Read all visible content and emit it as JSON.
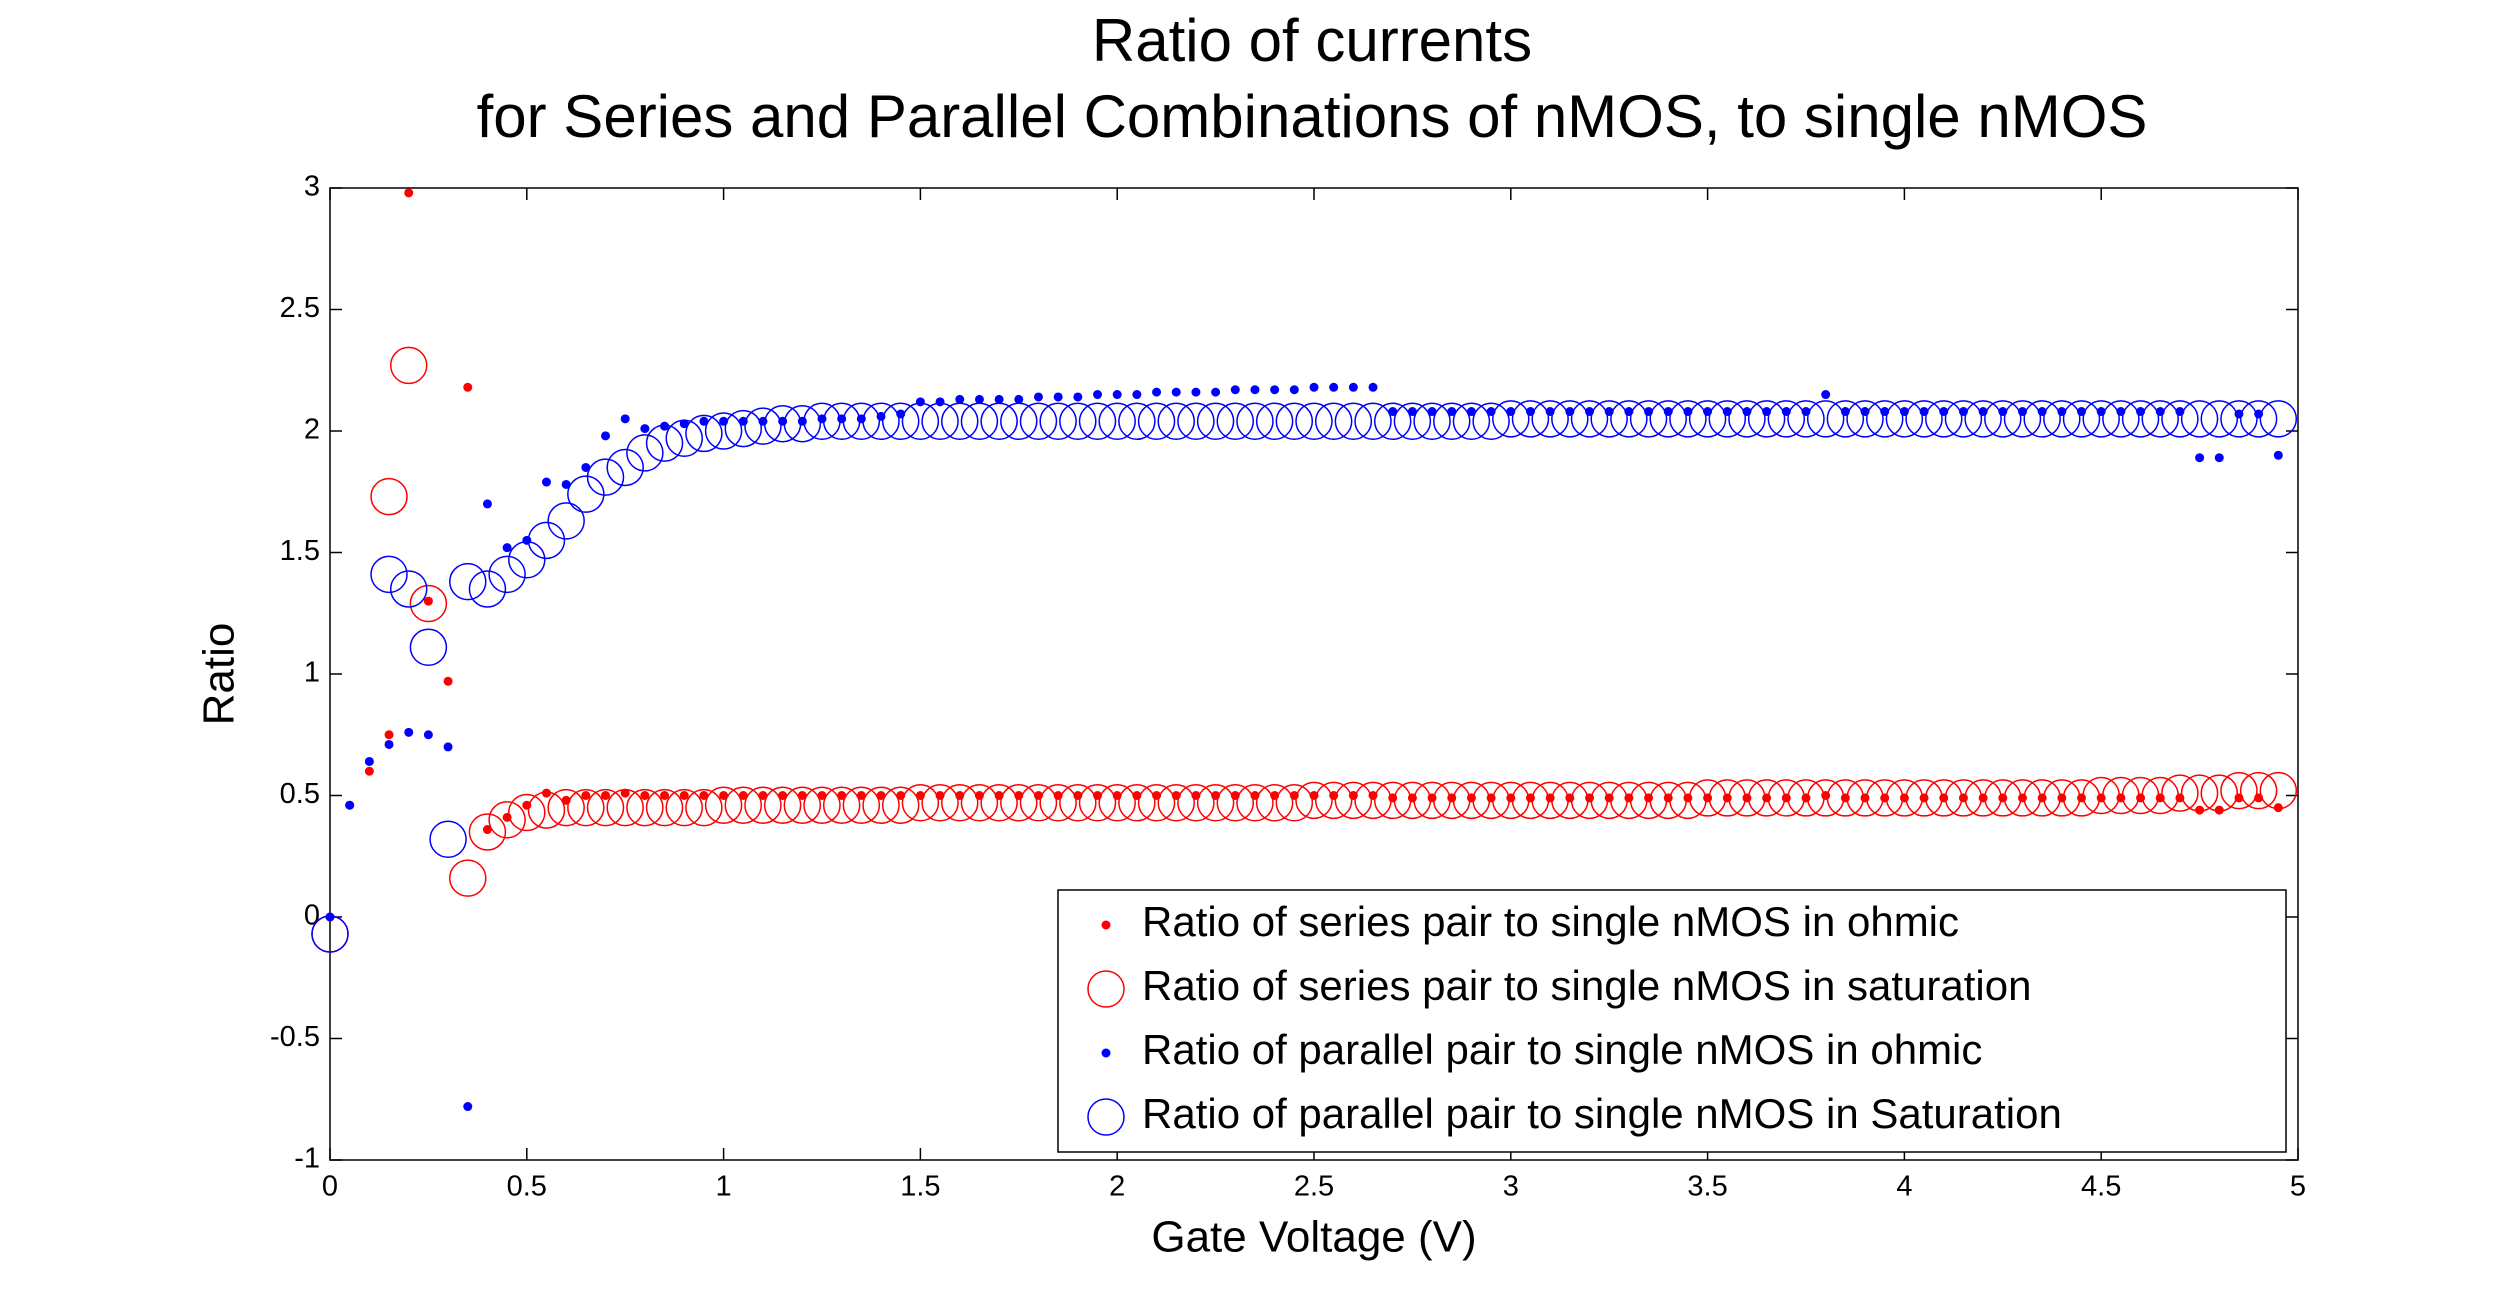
{
  "chart_data": {
    "type": "scatter",
    "title": [
      "Ratio of currents",
      "for Series and Parallel Combinations of nMOS, to single nMOS"
    ],
    "x_label": "Gate Voltage (V)",
    "y_label": "Ratio",
    "x": [
      0,
      0.05,
      0.1,
      0.15,
      0.2,
      0.25,
      0.3,
      0.35,
      0.4,
      0.45,
      0.5,
      0.55,
      0.6,
      0.65,
      0.7,
      0.75,
      0.8,
      0.85,
      0.9,
      0.95,
      1,
      1.05,
      1.1,
      1.15,
      1.2,
      1.25,
      1.3,
      1.35,
      1.4,
      1.45,
      1.5,
      1.55,
      1.6,
      1.65,
      1.7,
      1.75,
      1.8,
      1.85,
      1.9,
      1.95,
      2,
      2.05,
      2.1,
      2.15,
      2.2,
      2.25,
      2.3,
      2.35,
      2.4,
      2.45,
      2.5,
      2.55,
      2.6,
      2.65,
      2.7,
      2.75,
      2.8,
      2.85,
      2.9,
      2.95,
      3,
      3.05,
      3.1,
      3.15,
      3.2,
      3.25,
      3.3,
      3.35,
      3.4,
      3.45,
      3.5,
      3.55,
      3.6,
      3.65,
      3.7,
      3.75,
      3.8,
      3.85,
      3.9,
      3.95,
      4,
      4.05,
      4.1,
      4.15,
      4.2,
      4.25,
      4.3,
      4.35,
      4.4,
      4.45,
      4.5,
      4.55,
      4.6,
      4.65,
      4.7,
      4.75,
      4.8,
      4.85,
      4.9,
      4.95
    ],
    "series": [
      {
        "name": "Ratio of series pair to single nMOS in ohmic",
        "color": "#ff0000",
        "marker": "dot",
        "values": [
          0,
          0.46,
          0.6,
          0.75,
          2.98,
          1.3,
          0.97,
          2.18,
          0.36,
          0.41,
          0.46,
          0.51,
          0.48,
          0.5,
          0.5,
          0.51,
          0.5,
          0.5,
          0.5,
          0.5,
          0.5,
          0.5,
          0.5,
          0.5,
          0.5,
          0.5,
          0.5,
          0.5,
          0.5,
          0.5,
          0.5,
          0.5,
          0.5,
          0.5,
          0.5,
          0.5,
          0.5,
          0.5,
          0.5,
          0.5,
          0.5,
          0.5,
          0.5,
          0.5,
          0.5,
          0.5,
          0.5,
          0.5,
          0.5,
          0.5,
          0.5,
          0.5,
          0.5,
          0.5,
          0.49,
          0.49,
          0.49,
          0.49,
          0.49,
          0.49,
          0.49,
          0.49,
          0.49,
          0.49,
          0.49,
          0.49,
          0.49,
          0.49,
          0.49,
          0.49,
          0.49,
          0.49,
          0.49,
          0.49,
          0.49,
          0.49,
          0.5,
          0.49,
          0.49,
          0.49,
          0.49,
          0.49,
          0.49,
          0.49,
          0.49,
          0.49,
          0.49,
          0.49,
          0.49,
          0.49,
          0.49,
          0.49,
          0.49,
          0.49,
          0.49,
          0.44,
          0.44,
          0.49,
          0.49,
          0.45
        ]
      },
      {
        "name": "Ratio of series pair to single nMOS in saturation",
        "color": "#ff0000",
        "marker": "circle",
        "values": [
          -0.07,
          null,
          null,
          1.73,
          2.27,
          1.29,
          null,
          0.16,
          0.35,
          0.4,
          0.43,
          0.44,
          0.45,
          0.45,
          0.45,
          0.45,
          0.45,
          0.45,
          0.45,
          0.45,
          0.46,
          0.46,
          0.46,
          0.46,
          0.46,
          0.46,
          0.46,
          0.46,
          0.46,
          0.46,
          0.47,
          0.47,
          0.47,
          0.47,
          0.47,
          0.47,
          0.47,
          0.47,
          0.47,
          0.47,
          0.47,
          0.47,
          0.47,
          0.47,
          0.47,
          0.47,
          0.47,
          0.47,
          0.47,
          0.47,
          0.48,
          0.48,
          0.48,
          0.48,
          0.48,
          0.48,
          0.48,
          0.48,
          0.48,
          0.48,
          0.48,
          0.48,
          0.48,
          0.48,
          0.48,
          0.48,
          0.48,
          0.48,
          0.48,
          0.48,
          0.49,
          0.49,
          0.49,
          0.49,
          0.49,
          0.49,
          0.49,
          0.49,
          0.49,
          0.49,
          0.49,
          0.49,
          0.49,
          0.49,
          0.49,
          0.49,
          0.49,
          0.49,
          0.49,
          0.49,
          0.5,
          0.5,
          0.5,
          0.5,
          0.51,
          0.51,
          0.51,
          0.52,
          0.52,
          0.52
        ]
      },
      {
        "name": "Ratio of parallel pair to single nMOS in ohmic",
        "color": "#0000ff",
        "marker": "dot",
        "values": [
          0,
          0.46,
          0.64,
          0.71,
          0.76,
          0.75,
          0.7,
          -0.78,
          1.7,
          1.52,
          1.55,
          1.79,
          1.78,
          1.85,
          1.98,
          2.05,
          2.01,
          2.02,
          2.03,
          2.04,
          2.04,
          2.04,
          2.04,
          2.04,
          2.04,
          2.05,
          2.05,
          2.05,
          2.06,
          2.07,
          2.12,
          2.12,
          2.13,
          2.13,
          2.13,
          2.13,
          2.14,
          2.14,
          2.14,
          2.15,
          2.15,
          2.15,
          2.16,
          2.16,
          2.16,
          2.16,
          2.17,
          2.17,
          2.17,
          2.17,
          2.18,
          2.18,
          2.18,
          2.18,
          2.08,
          2.08,
          2.08,
          2.08,
          2.08,
          2.08,
          2.08,
          2.08,
          2.08,
          2.08,
          2.08,
          2.08,
          2.08,
          2.08,
          2.08,
          2.08,
          2.08,
          2.08,
          2.08,
          2.08,
          2.08,
          2.08,
          2.15,
          2.08,
          2.08,
          2.08,
          2.08,
          2.08,
          2.08,
          2.08,
          2.08,
          2.08,
          2.08,
          2.08,
          2.08,
          2.08,
          2.08,
          2.08,
          2.08,
          2.08,
          2.08,
          1.89,
          1.89,
          2.07,
          2.07,
          1.9
        ]
      },
      {
        "name": "Ratio of parallel pair to single nMOS in Saturation",
        "color": "#0000ff",
        "marker": "circle",
        "values": [
          -0.07,
          null,
          null,
          1.41,
          1.35,
          1.11,
          0.32,
          1.38,
          1.35,
          1.41,
          1.47,
          1.55,
          1.63,
          1.74,
          1.81,
          1.85,
          1.91,
          1.95,
          1.97,
          1.99,
          2.0,
          2.01,
          2.02,
          2.03,
          2.03,
          2.04,
          2.04,
          2.04,
          2.04,
          2.04,
          2.04,
          2.04,
          2.04,
          2.04,
          2.04,
          2.04,
          2.04,
          2.04,
          2.04,
          2.04,
          2.04,
          2.04,
          2.04,
          2.04,
          2.04,
          2.04,
          2.04,
          2.04,
          2.04,
          2.04,
          2.04,
          2.04,
          2.04,
          2.04,
          2.04,
          2.04,
          2.04,
          2.04,
          2.04,
          2.04,
          2.05,
          2.05,
          2.05,
          2.05,
          2.05,
          2.05,
          2.05,
          2.05,
          2.05,
          2.05,
          2.05,
          2.05,
          2.05,
          2.05,
          2.05,
          2.05,
          2.05,
          2.05,
          2.05,
          2.05,
          2.05,
          2.05,
          2.05,
          2.05,
          2.05,
          2.05,
          2.05,
          2.05,
          2.05,
          2.05,
          2.05,
          2.05,
          2.05,
          2.05,
          2.05,
          2.05,
          2.05,
          2.05,
          2.05,
          2.05
        ]
      }
    ],
    "xlim": [
      0,
      5
    ],
    "xticks": [
      0,
      0.5,
      1,
      1.5,
      2,
      2.5,
      3,
      3.5,
      4,
      4.5,
      5
    ],
    "ylim": [
      -1,
      3
    ],
    "yticks": [
      -1,
      -0.5,
      0,
      0.5,
      1,
      1.5,
      2,
      2.5,
      3
    ],
    "grid": false,
    "legend_position": "lower right"
  }
}
